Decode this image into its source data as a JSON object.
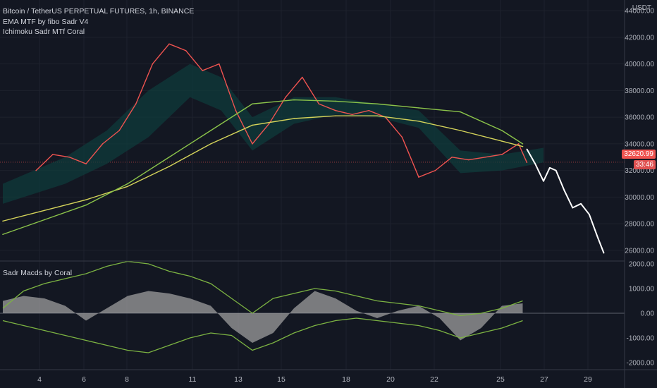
{
  "header": {
    "title": "Bitcoin / TetherUS PERPETUAL FUTURES, 1h, BINANCE",
    "indicator_1": "EMA MTF by fibo Sadr V4",
    "indicator_2": "Ichimoku Sadr  MTf Coral",
    "currency": "USDT"
  },
  "price_scale": {
    "ticks": [
      "44000.00",
      "42000.00",
      "40000.00",
      "38000.00",
      "36000.00",
      "34000.00",
      "32000.00",
      "30000.00",
      "28000.00",
      "26000.00"
    ],
    "last_price": "32620.99",
    "countdown": "33:46",
    "last_price_color": "#ef5350"
  },
  "sub_pane": {
    "title": "Sadr Macds by Coral",
    "ticks": [
      "2000.00",
      "1000.00",
      "0.00",
      "-1000.00",
      "-2000.00"
    ]
  },
  "time_axis": {
    "labels": [
      "4",
      "6",
      "8",
      "11",
      "13",
      "15",
      "18",
      "20",
      "22",
      "25",
      "27",
      "29"
    ]
  },
  "chart_data": {
    "type": "line",
    "title": "Bitcoin / TetherUS PERPETUAL FUTURES, 1h, BINANCE",
    "ylim": [
      25200,
      44800
    ],
    "x_labels": [
      "4",
      "6",
      "8",
      "11",
      "13",
      "15",
      "18",
      "20",
      "22",
      "25",
      "27",
      "29"
    ],
    "series": [
      {
        "name": "price",
        "color": "#ef5350",
        "x": [
          1.6,
          2.4,
          3.2,
          4.0,
          4.8,
          5.6,
          6.4,
          7.2,
          8.0,
          8.8,
          9.6,
          10.4,
          11.2,
          12.0,
          12.8,
          13.6,
          14.4,
          15.2,
          16.0,
          16.8,
          17.6,
          18.4,
          19.2,
          20.0,
          20.8,
          21.6,
          22.4,
          23.2,
          24.0,
          24.8,
          25.2
        ],
        "values": [
          32000,
          33200,
          33000,
          32500,
          34000,
          35000,
          37000,
          40000,
          41500,
          41000,
          39500,
          40000,
          36500,
          34000,
          35500,
          37500,
          39000,
          37000,
          36500,
          36200,
          36500,
          36000,
          34500,
          31500,
          32000,
          33000,
          32800,
          33000,
          33200,
          34000,
          32600
        ]
      },
      {
        "name": "projection",
        "color": "#ffffff",
        "x": [
          25.2,
          25.6,
          26.0,
          26.3,
          26.6,
          27.0,
          27.4,
          27.8,
          28.2,
          28.6,
          28.9
        ],
        "values": [
          33600,
          32500,
          31200,
          32200,
          32000,
          30500,
          29200,
          29500,
          28700,
          27000,
          25800
        ]
      },
      {
        "name": "slow-ma",
        "color": "#d4d35a",
        "x": [
          0,
          2,
          4,
          6,
          8,
          10,
          12,
          14,
          16,
          18,
          20,
          22,
          24,
          25
        ],
        "values": [
          28200,
          29000,
          29800,
          30800,
          32300,
          34000,
          35400,
          35900,
          36100,
          36100,
          35700,
          35000,
          34200,
          33800
        ]
      },
      {
        "name": "slow-ma-2",
        "color": "#8bc34a",
        "x": [
          0,
          2,
          4,
          6,
          8,
          10,
          12,
          14,
          16,
          18,
          20,
          22,
          24,
          25
        ],
        "values": [
          27200,
          28300,
          29400,
          31000,
          33000,
          35000,
          37000,
          37300,
          37200,
          37000,
          36700,
          36400,
          35000,
          34000
        ]
      }
    ],
    "macd": {
      "x": [
        0,
        1,
        2,
        3,
        4,
        5,
        6,
        7,
        8,
        9,
        10,
        11,
        12,
        13,
        14,
        15,
        16,
        17,
        18,
        19,
        20,
        21,
        22,
        23,
        24,
        25
      ],
      "histogram": [
        500,
        700,
        600,
        300,
        -300,
        200,
        700,
        900,
        800,
        600,
        300,
        -600,
        -1200,
        -800,
        200,
        900,
        600,
        100,
        -200,
        100,
        300,
        -200,
        -1100,
        -600,
        300,
        400
      ],
      "signal_upper": [
        200,
        900,
        1200,
        1400,
        1600,
        1900,
        2100,
        2000,
        1700,
        1500,
        1200,
        600,
        0,
        600,
        800,
        1000,
        900,
        700,
        500,
        400,
        300,
        100,
        -100,
        0,
        200,
        500
      ],
      "signal_lower": [
        -300,
        -500,
        -700,
        -900,
        -1100,
        -1300,
        -1500,
        -1600,
        -1300,
        -1000,
        -800,
        -900,
        -1500,
        -1200,
        -800,
        -500,
        -300,
        -200,
        -300,
        -400,
        -500,
        -700,
        -1000,
        -800,
        -600,
        -300
      ]
    }
  }
}
